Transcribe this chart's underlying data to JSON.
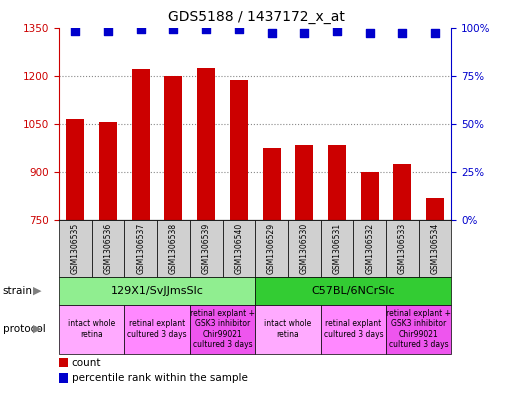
{
  "title": "GDS5188 / 1437172_x_at",
  "samples": [
    "GSM1306535",
    "GSM1306536",
    "GSM1306537",
    "GSM1306538",
    "GSM1306539",
    "GSM1306540",
    "GSM1306529",
    "GSM1306530",
    "GSM1306531",
    "GSM1306532",
    "GSM1306533",
    "GSM1306534"
  ],
  "counts": [
    1065,
    1055,
    1220,
    1200,
    1225,
    1185,
    975,
    985,
    985,
    900,
    925,
    820
  ],
  "percentiles": [
    98,
    98,
    99,
    99,
    99,
    99,
    97,
    97,
    98,
    97,
    97,
    97
  ],
  "ylim_left": [
    750,
    1350
  ],
  "ylim_right": [
    0,
    100
  ],
  "yticks_left": [
    750,
    900,
    1050,
    1200,
    1350
  ],
  "yticks_right": [
    0,
    25,
    50,
    75,
    100
  ],
  "bar_color": "#cc0000",
  "dot_color": "#0000cc",
  "strain_groups": [
    {
      "label": "129X1/SvJJmsSlc",
      "start": 0,
      "end": 6,
      "color": "#90ee90"
    },
    {
      "label": "C57BL/6NCrSlc",
      "start": 6,
      "end": 12,
      "color": "#33cc33"
    }
  ],
  "protocol_groups": [
    {
      "label": "intact whole\nretina",
      "start": 0,
      "end": 2,
      "color": "#ffaaff"
    },
    {
      "label": "retinal explant\ncultured 3 days",
      "start": 2,
      "end": 4,
      "color": "#ff88ff"
    },
    {
      "label": "retinal explant +\nGSK3 inhibitor\nChir99021\ncultured 3 days",
      "start": 4,
      "end": 6,
      "color": "#ee55ee"
    },
    {
      "label": "intact whole\nretina",
      "start": 6,
      "end": 8,
      "color": "#ffaaff"
    },
    {
      "label": "retinal explant\ncultured 3 days",
      "start": 8,
      "end": 10,
      "color": "#ff88ff"
    },
    {
      "label": "retinal explant +\nGSK3 inhibitor\nChir99021\ncultured 3 days",
      "start": 10,
      "end": 12,
      "color": "#ee55ee"
    }
  ],
  "left_axis_color": "#cc0000",
  "right_axis_color": "#0000cc",
  "bg_color": "#ffffff",
  "grid_color": "#888888",
  "bar_width": 0.55,
  "dot_size": 35,
  "label_fontsize": 5.5,
  "strain_fontsize": 8,
  "proto_fontsize": 5.5,
  "axis_fontsize": 7.5,
  "title_fontsize": 10,
  "legend_fontsize": 7.5
}
